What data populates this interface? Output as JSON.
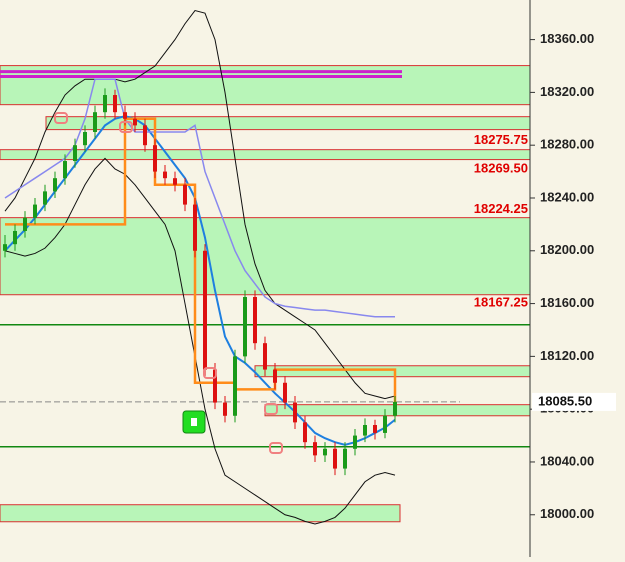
{
  "chart_data": {
    "type": "candlestick",
    "ylim": [
      17968,
      18390
    ],
    "yticks": [
      {
        "value": 18000,
        "label": "18000.00"
      },
      {
        "value": 18040,
        "label": "18040.00"
      },
      {
        "value": 18080,
        "label": "18080.00"
      },
      {
        "value": 18120,
        "label": "18120.00"
      },
      {
        "value": 18160,
        "label": "18160.00"
      },
      {
        "value": 18200,
        "label": "18200.00"
      },
      {
        "value": 18240,
        "label": "18240.00"
      },
      {
        "value": 18280,
        "label": "18280.00"
      },
      {
        "value": 18320,
        "label": "18320.00"
      },
      {
        "value": 18360,
        "label": "18360.00"
      }
    ],
    "levels": [
      {
        "value": 18275.75,
        "label": "18275.75"
      },
      {
        "value": 18269.5,
        "label": "18269.50"
      },
      {
        "value": 18224.25,
        "label": "18224.25"
      },
      {
        "value": 18167.25,
        "label": "18167.25"
      }
    ],
    "last_price": {
      "value": 18085.5,
      "label": "18085.50"
    },
    "zones": [
      [
        18340.3,
        18310.7
      ],
      [
        18301.6,
        18291.8
      ],
      [
        18276.6,
        18269.1
      ],
      [
        18225.1,
        18166.7
      ],
      [
        18112.9,
        18104.6
      ],
      [
        18083.4,
        18075
      ],
      [
        18007.6,
        17994.7
      ]
    ],
    "zone_color": "#b8f5b8",
    "zone_border": "#d83030",
    "hlines": [
      18144,
      18051.5
    ],
    "hline_color": "#118811",
    "magenta_lines": [
      18335.7,
      18332
    ],
    "magenta_color": "#cc22cc",
    "up_color": "#1a9a1a",
    "down_color": "#dd1111",
    "candles": {
      "open": [
        18200,
        18205,
        18215,
        18225,
        18235,
        18245,
        18255,
        18268,
        18280,
        18290,
        18305,
        18318,
        18305,
        18300,
        18295,
        18280,
        18260,
        18255,
        18250,
        18235,
        18200,
        18110,
        18085,
        18075,
        18120,
        18165,
        18130,
        18110,
        18100,
        18085,
        18070,
        18055,
        18045,
        18050,
        18035,
        18050,
        18060,
        18068,
        18062,
        18075
      ],
      "high": [
        18212,
        18220,
        18230,
        18240,
        18250,
        18260,
        18273,
        18285,
        18295,
        18310,
        18323,
        18322,
        18310,
        18305,
        18300,
        18285,
        18265,
        18260,
        18255,
        18240,
        18205,
        18115,
        18090,
        18125,
        18170,
        18170,
        18135,
        18115,
        18105,
        18090,
        18075,
        18060,
        18055,
        18055,
        18055,
        18065,
        18073,
        18072,
        18080,
        18090
      ],
      "low": [
        18195,
        18200,
        18210,
        18220,
        18230,
        18240,
        18250,
        18263,
        18275,
        18285,
        18300,
        18300,
        18295,
        18290,
        18275,
        18255,
        18250,
        18245,
        18230,
        18195,
        18105,
        18080,
        18070,
        18070,
        18115,
        18125,
        18105,
        18095,
        18080,
        18065,
        18050,
        18040,
        18040,
        18030,
        18030,
        18045,
        18055,
        18057,
        18058,
        18070
      ],
      "close": [
        18205,
        18215,
        18225,
        18235,
        18245,
        18255,
        18268,
        18280,
        18290,
        18305,
        18318,
        18305,
        18300,
        18295,
        18280,
        18260,
        18255,
        18250,
        18235,
        18200,
        18110,
        18085,
        18075,
        18120,
        18165,
        18130,
        18110,
        18100,
        18085,
        18070,
        18055,
        18045,
        18050,
        18035,
        18050,
        18060,
        18068,
        18062,
        18075,
        18085.5
      ]
    },
    "series": [
      {
        "color": "#1e7fe0",
        "width": 2,
        "values": [
          18200,
          18208,
          18216,
          18225,
          18235,
          18245,
          18255,
          18265,
          18275,
          18285,
          18295,
          18300,
          18302,
          18300,
          18295,
          18285,
          18275,
          18265,
          18255,
          18240,
          18210,
          18170,
          18135,
          18120,
          18115,
          18108,
          18100,
          18092,
          18085,
          18078,
          18070,
          18062,
          18058,
          18055,
          18053,
          18055,
          18058,
          18062,
          18066,
          18072
        ]
      },
      {
        "color": "#111111",
        "width": 1,
        "values": [
          18230,
          18240,
          18255,
          18270,
          18290,
          18305,
          18318,
          18325,
          18330,
          18330,
          18330,
          18330,
          18328,
          18330,
          18335,
          18340,
          18350,
          18360,
          18372,
          18382,
          18380,
          18360,
          18320,
          18270,
          18220,
          18190,
          18170,
          18160,
          18155,
          18150,
          18145,
          18140,
          18130,
          18120,
          18110,
          18100,
          18092,
          18090,
          18088,
          18090
        ]
      },
      {
        "color": "#111111",
        "width": 1,
        "values": [
          18200,
          18198,
          18196,
          18198,
          18202,
          18210,
          18220,
          18235,
          18250,
          18262,
          18270,
          18262,
          18258,
          18250,
          18240,
          18230,
          18220,
          18200,
          18160,
          18120,
          18080,
          18050,
          18030,
          18025,
          18020,
          18015,
          18010,
          18005,
          18000,
          17998,
          17995,
          17993,
          17995,
          17998,
          18005,
          18015,
          18025,
          18030,
          18032,
          18030
        ]
      },
      {
        "color": "#8888ee",
        "width": 1.5,
        "values": [
          18240,
          18245,
          18250,
          18255,
          18260,
          18265,
          18270,
          18280,
          18300,
          18330,
          18330,
          18330,
          18300,
          18290,
          18290,
          18290,
          18290,
          18290,
          18290,
          18295,
          18260,
          18240,
          18220,
          18200,
          18185,
          18175,
          18165,
          18160,
          18158,
          18157,
          18156,
          18155,
          18155,
          18154,
          18153,
          18152,
          18151,
          18150,
          18150,
          18150
        ]
      },
      {
        "color": "#ff8c1a",
        "width": 2.5,
        "step": true,
        "values": [
          18220,
          18220,
          18220,
          18220,
          18220,
          18220,
          18220,
          18220,
          18220,
          18220,
          18220,
          18220,
          18300,
          18300,
          18300,
          18250,
          18250,
          18250,
          18250,
          18100,
          18100,
          18100,
          18100,
          18095,
          18095,
          18095,
          18095,
          18110,
          18110,
          18110,
          18110,
          18110,
          18110,
          18110,
          18110,
          18110,
          18110,
          18110,
          18110,
          18075
        ]
      }
    ]
  }
}
